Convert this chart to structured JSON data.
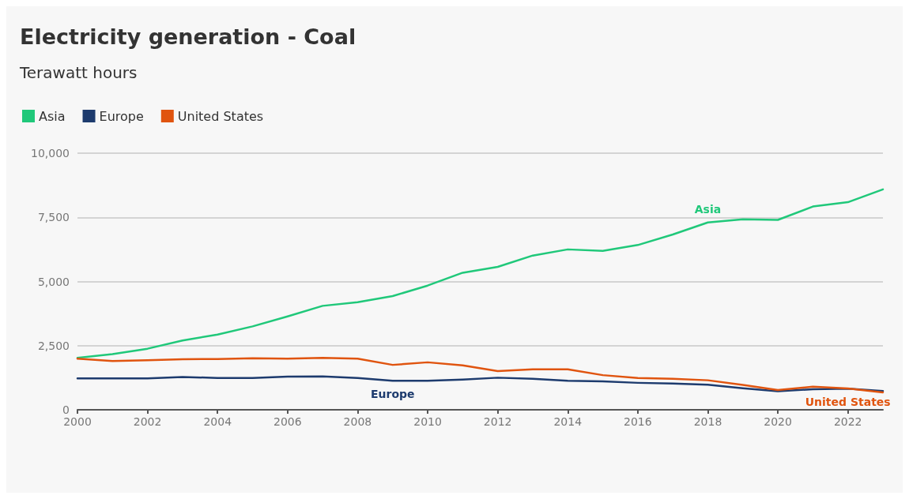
{
  "chart_data": {
    "type": "line",
    "title": "Electricity generation - Coal",
    "subtitle": "Terawatt hours",
    "x": [
      2000,
      2001,
      2002,
      2003,
      2004,
      2005,
      2006,
      2007,
      2008,
      2009,
      2010,
      2011,
      2012,
      2013,
      2014,
      2015,
      2016,
      2017,
      2018,
      2019,
      2020,
      2021,
      2022,
      2023
    ],
    "series": [
      {
        "name": "Asia",
        "color": "#20c87a",
        "values": [
          2020,
          2170,
          2380,
          2700,
          2930,
          3250,
          3640,
          4050,
          4190,
          4430,
          4840,
          5340,
          5570,
          6010,
          6250,
          6190,
          6420,
          6830,
          7300,
          7420,
          7400,
          7920,
          8090,
          8590
        ]
      },
      {
        "name": "Europe",
        "color": "#1d3b6e",
        "values": [
          1220,
          1220,
          1220,
          1280,
          1240,
          1240,
          1290,
          1300,
          1240,
          1130,
          1130,
          1180,
          1250,
          1210,
          1130,
          1110,
          1050,
          1020,
          980,
          840,
          720,
          800,
          820,
          730
        ]
      },
      {
        "name": "United States",
        "color": "#e0540f",
        "values": [
          1990,
          1900,
          1930,
          1970,
          1980,
          2010,
          1990,
          2020,
          1990,
          1750,
          1850,
          1730,
          1510,
          1580,
          1580,
          1350,
          1240,
          1210,
          1150,
          970,
          770,
          900,
          830,
          680
        ]
      }
    ],
    "xlim": [
      2000,
      2023
    ],
    "xticks": [
      2000,
      2002,
      2004,
      2006,
      2008,
      2010,
      2012,
      2014,
      2016,
      2018,
      2020,
      2022
    ],
    "ylim": [
      0,
      10000
    ],
    "yticks": [
      0,
      {
        "value": 2500,
        "label": "2,500"
      },
      {
        "value": 5000,
        "label": "5,000"
      },
      {
        "value": 7500,
        "label": "7,500"
      },
      {
        "value": 10000,
        "label": "10,000"
      }
    ],
    "grid": "y",
    "legend": "top left",
    "marker": "none",
    "line_style": "solid"
  }
}
